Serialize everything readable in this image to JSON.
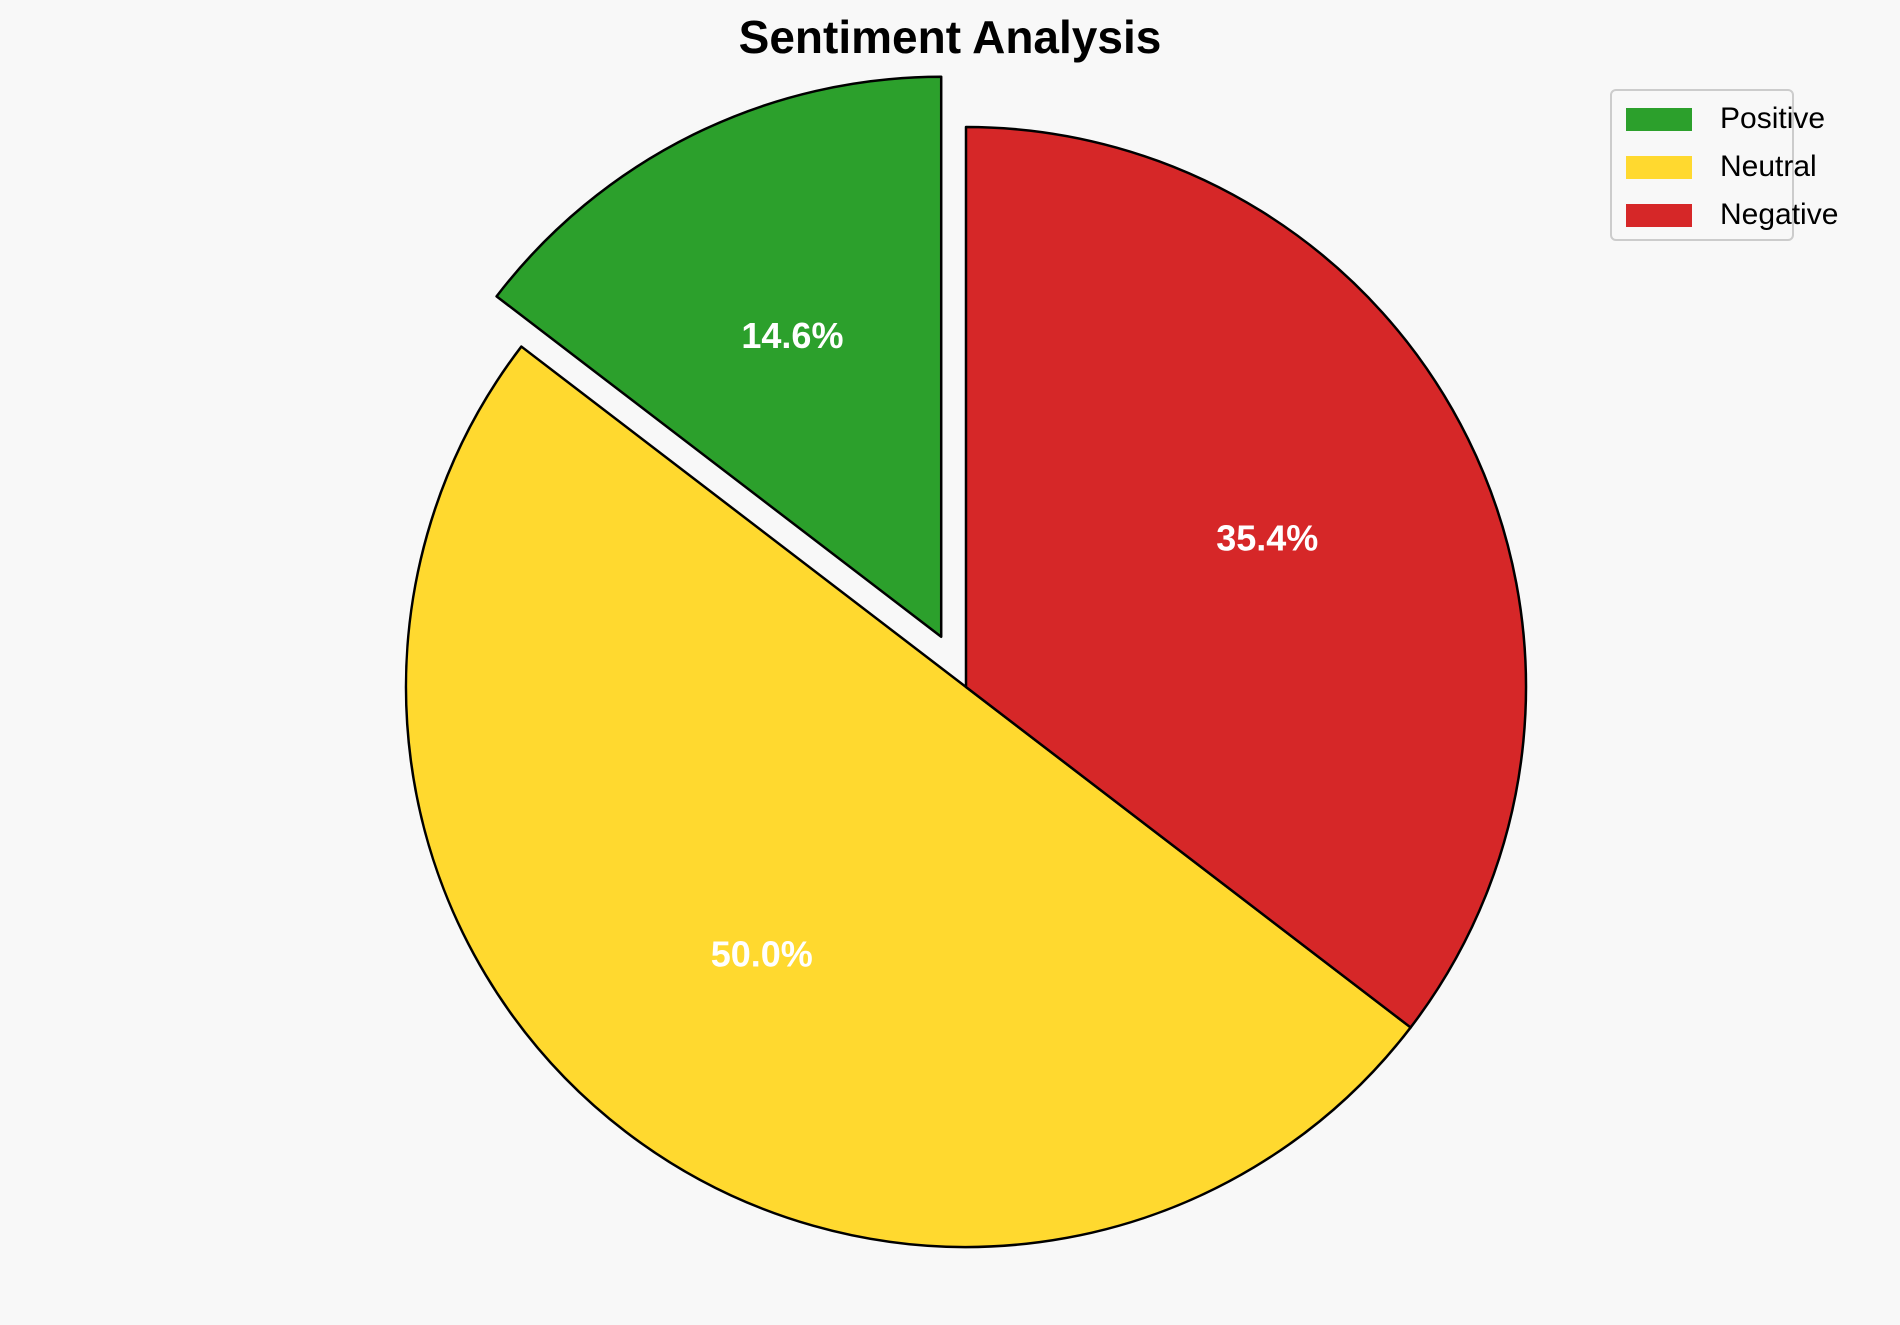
{
  "chart_data": {
    "type": "pie",
    "title": "Sentiment Analysis",
    "categories": [
      "Positive",
      "Neutral",
      "Negative"
    ],
    "values": [
      14.6,
      50.0,
      35.4
    ],
    "labels": [
      "14.6%",
      "50.0%",
      "35.4%"
    ],
    "colors": [
      "#2ca02c",
      "#ffd92f",
      "#d62728"
    ],
    "edge_color": "#000000",
    "exploded": [
      true,
      false,
      false
    ],
    "legend_position": "top-right"
  }
}
